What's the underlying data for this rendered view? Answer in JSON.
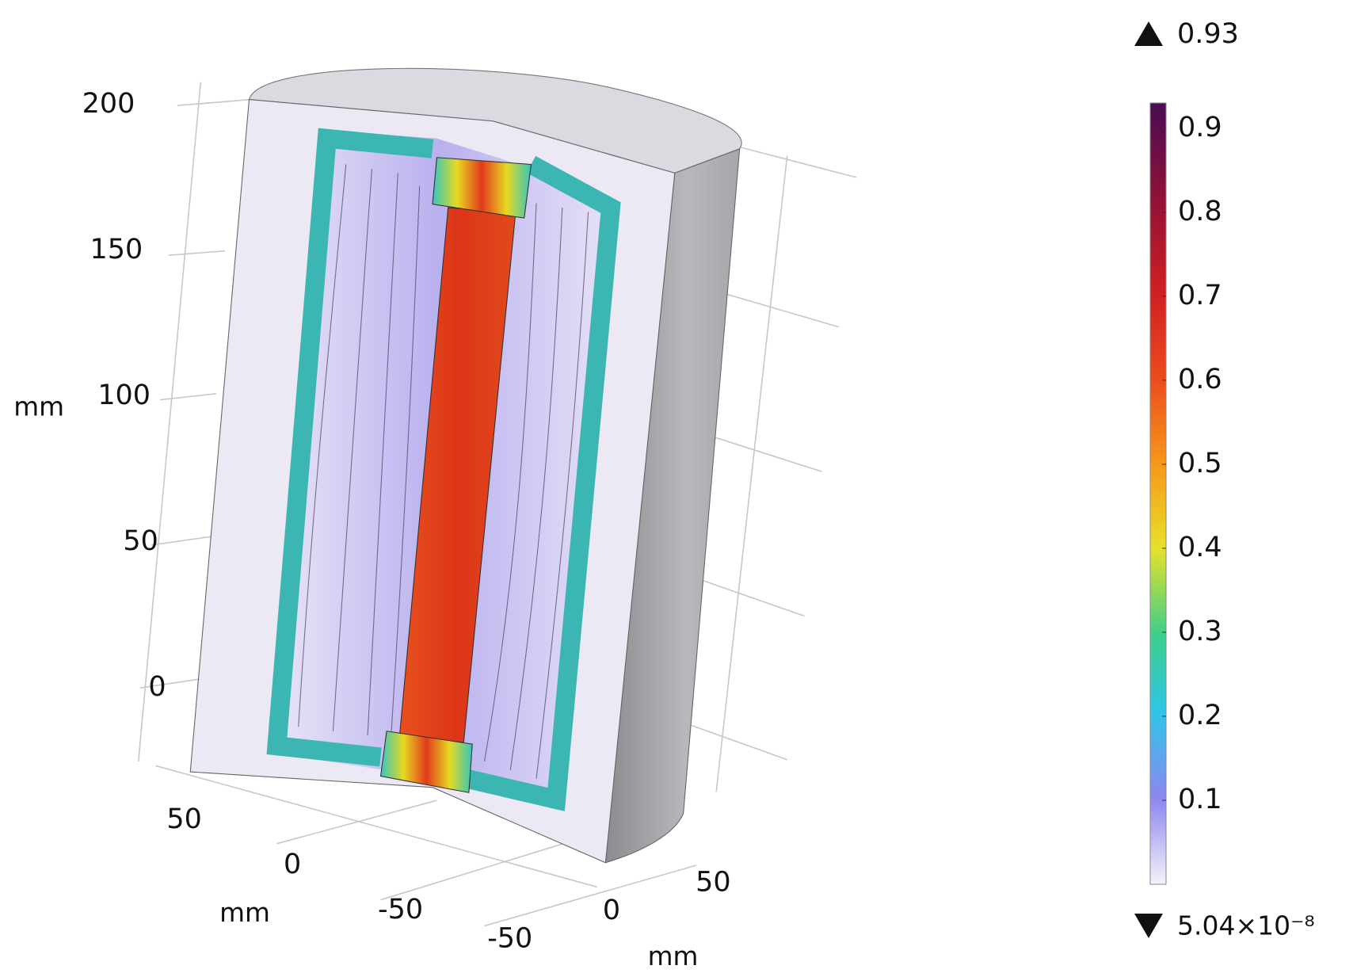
{
  "axes": {
    "z": {
      "label": "mm",
      "ticks": [
        200,
        150,
        100,
        50,
        0
      ]
    },
    "x": {
      "label": "mm",
      "ticks": [
        50,
        0,
        -50
      ]
    },
    "y": {
      "label": "mm",
      "ticks": [
        50,
        0,
        -50
      ]
    }
  },
  "colorbar": {
    "max": 0.93,
    "min": {
      "value": 5.04e-08,
      "label": "5.04×10⁻⁸"
    },
    "ticks": [
      0.9,
      0.8,
      0.7,
      0.6,
      0.5,
      0.4,
      0.3,
      0.2,
      0.1
    ]
  }
}
